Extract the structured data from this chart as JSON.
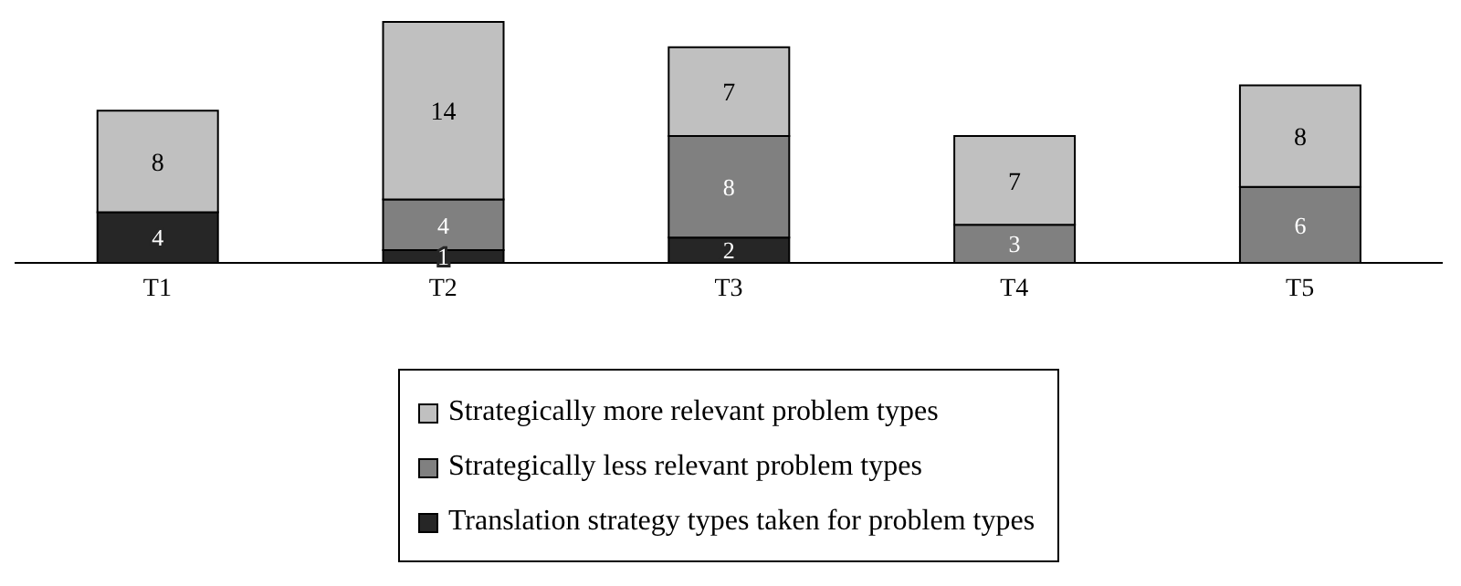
{
  "chart_data": {
    "type": "bar",
    "stacked": true,
    "data_labels": true,
    "legend": "bottom",
    "categories": [
      "T1",
      "T2",
      "T3",
      "T4",
      "T5"
    ],
    "series": [
      {
        "name": "Translation strategy types taken for problem types",
        "color": "#262626",
        "values": [
          4,
          1,
          2,
          null,
          null
        ]
      },
      {
        "name": "Strategically less relevant problem types",
        "color": "#808080",
        "values": [
          null,
          4,
          8,
          3,
          6
        ]
      },
      {
        "name": "Strategically more relevant problem types",
        "color": "#c0c0c0",
        "values": [
          8,
          14,
          7,
          7,
          8
        ]
      }
    ]
  }
}
